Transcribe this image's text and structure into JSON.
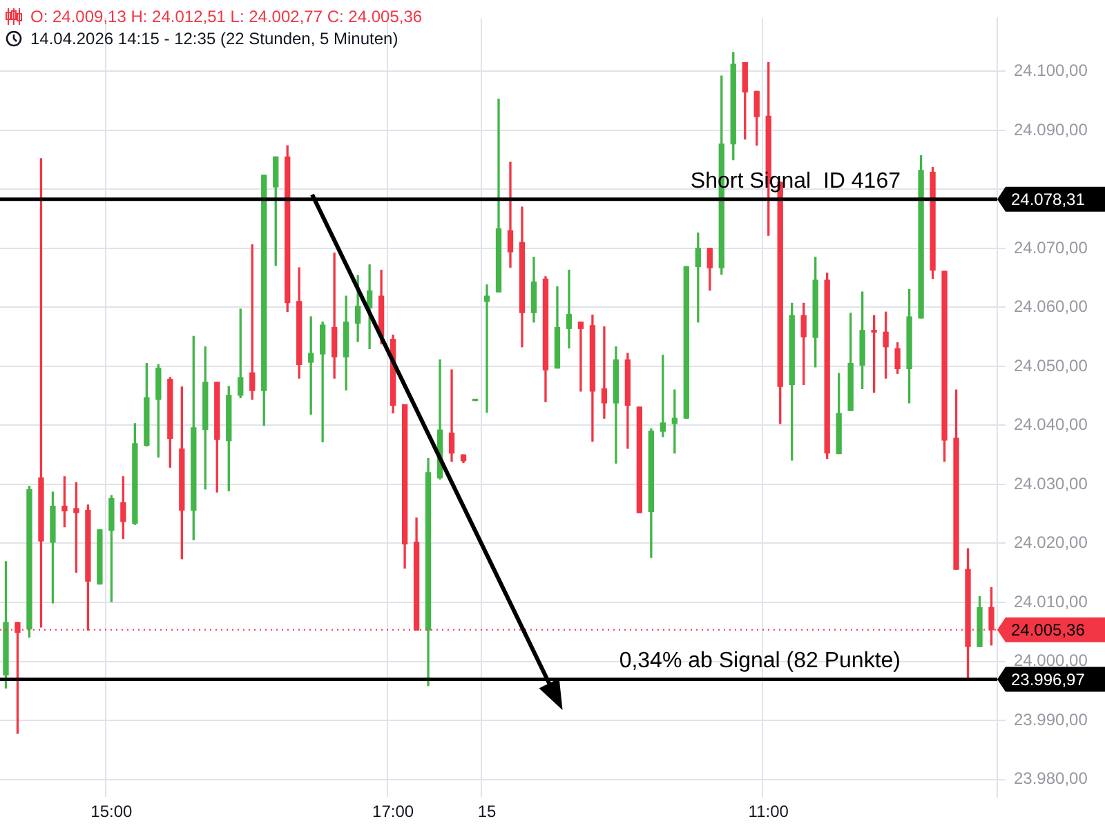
{
  "chart_data": {
    "type": "candlestick",
    "title": "O: 24.009,13  H: 24.012,51  L: 24.002,77  C: 24.005,36",
    "subtitle": "14.04.2026 14:15 - 12:35  (22 Stunden, 5 Minuten)",
    "categories": [
      null,
      null,
      null,
      null,
      null,
      null,
      null,
      null,
      null,
      "15:00",
      null,
      null,
      null,
      null,
      null,
      null,
      null,
      null,
      null,
      null,
      null,
      null,
      null,
      null,
      null,
      null,
      null,
      null,
      null,
      null,
      null,
      null,
      null,
      "17:00",
      null,
      null,
      null,
      null,
      null,
      null,
      null,
      "15",
      null,
      null,
      null,
      null,
      null,
      null,
      null,
      null,
      null,
      null,
      null,
      null,
      null,
      null,
      null,
      null,
      null,
      null,
      null,
      null,
      null,
      null,
      null,
      "11:00",
      null,
      null,
      null,
      null,
      null,
      null,
      null,
      null,
      null,
      null,
      null,
      null,
      null,
      null,
      null,
      null,
      null,
      null,
      null
    ],
    "ohlc": [
      [
        23997.7,
        24016.9,
        23995.5,
        24006.6
      ],
      [
        24006.6,
        24006.6,
        23987.8,
        24004.9
      ],
      [
        24005.5,
        24029.7,
        24004.1,
        24029.1
      ],
      [
        24031.1,
        24085.2,
        24005.8,
        24020.4
      ],
      [
        24020.2,
        24028.7,
        24009.9,
        24026.3
      ],
      [
        24026.3,
        24031.3,
        24022.8,
        24025.5
      ],
      [
        24025.9,
        24030.3,
        24015.1,
        24025.2
      ],
      [
        24025.6,
        24026.5,
        24005.3,
        24013.6
      ],
      [
        24013.1,
        24022.3,
        24013.1,
        24022.3
      ],
      [
        24022.2,
        24028.1,
        24010.1,
        24027.6
      ],
      [
        24026.9,
        24031.3,
        24020.8,
        24023.7
      ],
      [
        24023.4,
        24040.3,
        24023.2,
        24036.9
      ],
      [
        24036.6,
        24050.5,
        24036.5,
        24044.7
      ],
      [
        24044.4,
        24050.3,
        24034.6,
        24049.7
      ],
      [
        24047.8,
        24048.1,
        24032.9,
        24037.8
      ],
      [
        24036.0,
        24046.5,
        24017.4,
        24025.6
      ],
      [
        24025.6,
        24055.1,
        24020.6,
        24039.6
      ],
      [
        24039.3,
        24053.3,
        24029.2,
        24047.3
      ],
      [
        24047.3,
        24047.3,
        24028.7,
        24037.6
      ],
      [
        24037.4,
        24046.6,
        24028.9,
        24045.1
      ],
      [
        24045.1,
        24059.7,
        24044.7,
        24048.1
      ],
      [
        24048.9,
        24070.6,
        24044.4,
        24045.9
      ],
      [
        24045.9,
        24082.4,
        24040.0,
        24082.4
      ],
      [
        24080.4,
        24085.5,
        24067.1,
        24085.5
      ],
      [
        24085.5,
        24087.4,
        24059.3,
        24060.8
      ],
      [
        24061.0,
        24066.7,
        24048.0,
        24050.3
      ],
      [
        24050.7,
        24058.4,
        24041.9,
        24052.2
      ],
      [
        24052.1,
        24057.5,
        24037.2,
        24057.0
      ],
      [
        24056.6,
        24069.2,
        24048.0,
        24051.6
      ],
      [
        24051.6,
        24061.9,
        24046.0,
        24057.5
      ],
      [
        24057.3,
        24065.4,
        24054.2,
        24060.2
      ],
      [
        24059.9,
        24067.2,
        24053.0,
        24062.8
      ],
      [
        24061.9,
        24066.3,
        24053.8,
        24055.1
      ],
      [
        24054.6,
        24055.3,
        24042.1,
        24043.4
      ],
      [
        24043.5,
        24043.5,
        24015.8,
        24019.9
      ],
      [
        24020.2,
        24024.3,
        24005.3,
        24005.3
      ],
      [
        24005.3,
        24034.4,
        23995.9,
        24032.0
      ],
      [
        24031.1,
        24051.1,
        24030.9,
        24039.2
      ],
      [
        24038.7,
        24049.4,
        24033.9,
        24035.3
      ],
      [
        24035.0,
        24035.0,
        24033.7,
        24034.0
      ],
      [
        24044.2,
        24044.2,
        24044.2,
        24044.2
      ],
      [
        24061.0,
        24063.8,
        24042.2,
        24061.9
      ],
      [
        24062.6,
        24095.3,
        24062.6,
        24073.3
      ],
      [
        24073.0,
        24084.6,
        24066.8,
        24069.4
      ],
      [
        24071.0,
        24077.0,
        24053.3,
        24059.1
      ],
      [
        24059.1,
        24068.5,
        24057.5,
        24064.3
      ],
      [
        24064.8,
        24065.2,
        24044.0,
        24049.4
      ],
      [
        24049.7,
        24063.5,
        24049.7,
        24056.6
      ],
      [
        24056.4,
        24066.3,
        24053.1,
        24058.8
      ],
      [
        24057.5,
        24057.5,
        24045.8,
        24056.4
      ],
      [
        24056.9,
        24058.7,
        24037.3,
        24045.8
      ],
      [
        24046.2,
        24056.7,
        24041.2,
        24043.8
      ],
      [
        24043.8,
        24053.3,
        24033.6,
        24051.1
      ],
      [
        24051.1,
        24052.2,
        24036.1,
        24043.4
      ],
      [
        24043.1,
        24043.1,
        24025.2,
        24025.2
      ],
      [
        24025.4,
        24039.4,
        24017.6,
        24039.0
      ],
      [
        24039.0,
        24051.9,
        24038.1,
        24040.4
      ],
      [
        24040.3,
        24046.0,
        24035.3,
        24041.2
      ],
      [
        24041.2,
        24066.9,
        24041.2,
        24066.9
      ],
      [
        24066.9,
        24072.6,
        24057.5,
        24070.0
      ],
      [
        24070.0,
        24070.0,
        24062.9,
        24066.7
      ],
      [
        24066.7,
        24099.2,
        24065.6,
        24087.7
      ],
      [
        24087.7,
        24103.2,
        24085.0,
        24101.2
      ],
      [
        24101.5,
        24101.5,
        24088.5,
        24096.5
      ],
      [
        24096.6,
        24096.6,
        24087.5,
        24092.3
      ],
      [
        24092.4,
        24101.5,
        24072.2,
        24081.0
      ],
      [
        24081.2,
        24081.2,
        24040.3,
        24046.6
      ],
      [
        24046.9,
        24060.7,
        24034.1,
        24058.6
      ],
      [
        24058.6,
        24060.7,
        24046.9,
        24055.0
      ],
      [
        24054.9,
        24068.5,
        24049.9,
        24064.6
      ],
      [
        24064.6,
        24065.8,
        24034.4,
        24035.3
      ],
      [
        24035.2,
        24048.8,
        24035.2,
        24042.0
      ],
      [
        24042.5,
        24059.0,
        24042.5,
        24050.5
      ],
      [
        24050.2,
        24062.6,
        24046.2,
        24056.1
      ],
      [
        24056.1,
        24058.6,
        24045.6,
        24055.8
      ],
      [
        24055.8,
        24059.2,
        24048.0,
        24053.3
      ],
      [
        24053.0,
        24054.0,
        24048.8,
        24049.6
      ],
      [
        24049.6,
        24063.0,
        24043.8,
        24058.4
      ],
      [
        24058.2,
        24085.7,
        24058.2,
        24083.2
      ],
      [
        24082.9,
        24083.7,
        24064.9,
        24066.3
      ],
      [
        24066.1,
        24066.1,
        24033.9,
        24037.5
      ],
      [
        24037.8,
        24046.0,
        24015.6,
        24015.6
      ],
      [
        24015.6,
        24019.1,
        23997.0,
        24002.5
      ],
      [
        24002.5,
        24011.0,
        24002.5,
        24009.1
      ],
      [
        24009.13,
        24012.51,
        24002.77,
        24005.36
      ]
    ],
    "ylim": [
      23977,
      24109
    ],
    "yticks": [
      {
        "value": 23980,
        "label": "23.980,00"
      },
      {
        "value": 23990,
        "label": "23.990,00"
      },
      {
        "value": 24000,
        "label": "24.000,00"
      },
      {
        "value": 24010,
        "label": "24.010,00"
      },
      {
        "value": 24020,
        "label": "24.020,00"
      },
      {
        "value": 24030,
        "label": "24.030,00"
      },
      {
        "value": 24040,
        "label": "24.040,00"
      },
      {
        "value": 24050,
        "label": "24.050,00"
      },
      {
        "value": 24060,
        "label": "24.060,00"
      },
      {
        "value": 24070,
        "label": "24.070,00"
      },
      {
        "value": 24080,
        "label": null
      },
      {
        "value": 24090,
        "label": "24.090,00"
      },
      {
        "value": 24100,
        "label": "24.100,00"
      }
    ],
    "ref_lines": [
      {
        "axis": "y",
        "value": 24078.31,
        "label": "24.078,31",
        "color": "#000000"
      },
      {
        "axis": "y",
        "value": 23996.97,
        "label": "23.996,97",
        "color": "#000000"
      },
      {
        "axis": "y",
        "value": 24005.36,
        "label": "24.005,36",
        "color": "#f23645",
        "line_style": "dotted"
      }
    ],
    "annotations": [
      {
        "text": "Short Signal  ID 4167",
        "y": 24078.31
      },
      {
        "text": "0,34% ab Signal (82 Punkte)",
        "y": 23996.97
      }
    ],
    "grid": true,
    "legend": false
  }
}
